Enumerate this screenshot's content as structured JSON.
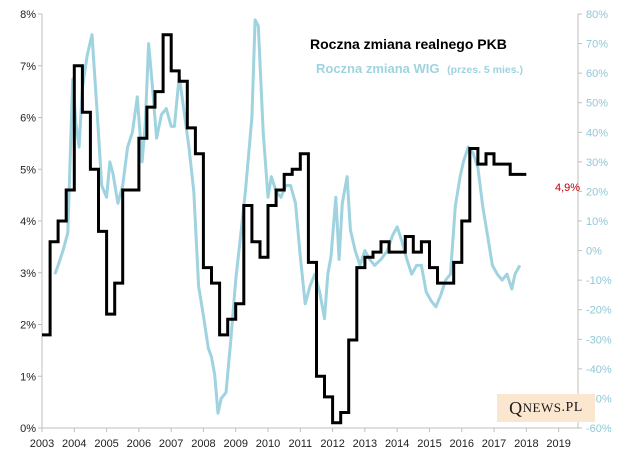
{
  "chart_data": {
    "type": "line",
    "title": "Roczna zmiana realnego PKB",
    "subtitle": "Roczna zmiana WIG",
    "subtitle_note": "(przes. 5 mies.)",
    "x_ticks": [
      "2003",
      "2004",
      "2005",
      "2006",
      "2007",
      "2008",
      "2009",
      "2010",
      "2011",
      "2012",
      "2013",
      "2014",
      "2015",
      "2016",
      "2017",
      "2018",
      "2019"
    ],
    "y_left_ticks": [
      "0%",
      "1%",
      "2%",
      "3%",
      "4%",
      "5%",
      "6%",
      "7%",
      "8%"
    ],
    "y_right_ticks": [
      "-60%",
      "-50%",
      "-40%",
      "-30%",
      "-20%",
      "-10%",
      "0%",
      "10%",
      "20%",
      "30%",
      "40%",
      "50%",
      "60%",
      "70%",
      "80%"
    ],
    "y_left_range": [
      0,
      8
    ],
    "y_right_range": [
      -60,
      80
    ],
    "colors": {
      "gdp": "#000000",
      "wig": "#9fd3df",
      "right_axis": "#8fc8d6",
      "annotation": "#c00000"
    },
    "annotation": "4,9%",
    "series": [
      {
        "name": "Roczna zmiana realnego PKB",
        "axis": "left",
        "step": true,
        "points": [
          [
            2003.0,
            1.8
          ],
          [
            2003.25,
            3.6
          ],
          [
            2003.5,
            4.0
          ],
          [
            2003.75,
            4.6
          ],
          [
            2004.0,
            7.0
          ],
          [
            2004.25,
            6.1
          ],
          [
            2004.5,
            5.0
          ],
          [
            2004.75,
            3.8
          ],
          [
            2005.0,
            2.2
          ],
          [
            2005.25,
            2.8
          ],
          [
            2005.5,
            4.6
          ],
          [
            2005.75,
            4.6
          ],
          [
            2006.0,
            5.6
          ],
          [
            2006.25,
            6.2
          ],
          [
            2006.5,
            6.5
          ],
          [
            2006.75,
            7.6
          ],
          [
            2007.0,
            6.9
          ],
          [
            2007.25,
            6.7
          ],
          [
            2007.5,
            5.8
          ],
          [
            2007.75,
            5.3
          ],
          [
            2008.0,
            3.1
          ],
          [
            2008.25,
            2.8
          ],
          [
            2008.5,
            1.8
          ],
          [
            2008.75,
            2.1
          ],
          [
            2009.0,
            2.4
          ],
          [
            2009.25,
            4.3
          ],
          [
            2009.5,
            3.6
          ],
          [
            2009.75,
            3.3
          ],
          [
            2010.0,
            4.3
          ],
          [
            2010.25,
            4.6
          ],
          [
            2010.5,
            4.9
          ],
          [
            2010.75,
            5.0
          ],
          [
            2011.0,
            5.3
          ],
          [
            2011.25,
            3.2
          ],
          [
            2011.5,
            1.0
          ],
          [
            2011.75,
            0.6
          ],
          [
            2012.0,
            0.1
          ],
          [
            2012.25,
            0.3
          ],
          [
            2012.5,
            1.7
          ],
          [
            2012.75,
            3.1
          ],
          [
            2013.0,
            3.3
          ],
          [
            2013.25,
            3.4
          ],
          [
            2013.5,
            3.6
          ],
          [
            2013.75,
            3.4
          ],
          [
            2014.0,
            3.4
          ],
          [
            2014.25,
            3.7
          ],
          [
            2014.5,
            3.4
          ],
          [
            2014.75,
            3.6
          ],
          [
            2015.0,
            3.1
          ],
          [
            2015.25,
            2.8
          ],
          [
            2015.5,
            2.8
          ],
          [
            2015.75,
            3.2
          ],
          [
            2016.0,
            4.0
          ],
          [
            2016.25,
            5.4
          ],
          [
            2016.5,
            5.1
          ],
          [
            2016.75,
            5.3
          ],
          [
            2017.0,
            5.1
          ],
          [
            2017.25,
            5.1
          ],
          [
            2017.5,
            4.9
          ],
          [
            2017.75,
            4.9
          ]
        ]
      },
      {
        "name": "Roczna zmiana WIG",
        "axis": "right",
        "step": false,
        "points": [
          [
            2003.4,
            -8
          ],
          [
            2003.5,
            -5
          ],
          [
            2003.65,
            0
          ],
          [
            2003.8,
            6
          ],
          [
            2003.95,
            58
          ],
          [
            2004.05,
            43
          ],
          [
            2004.15,
            35
          ],
          [
            2004.25,
            55
          ],
          [
            2004.4,
            66
          ],
          [
            2004.55,
            73
          ],
          [
            2004.7,
            48
          ],
          [
            2004.85,
            22
          ],
          [
            2005.0,
            18
          ],
          [
            2005.1,
            30
          ],
          [
            2005.2,
            26
          ],
          [
            2005.35,
            16
          ],
          [
            2005.5,
            22
          ],
          [
            2005.65,
            35
          ],
          [
            2005.8,
            40
          ],
          [
            2005.95,
            52
          ],
          [
            2006.1,
            30
          ],
          [
            2006.2,
            43
          ],
          [
            2006.3,
            70
          ],
          [
            2006.4,
            58
          ],
          [
            2006.55,
            38
          ],
          [
            2006.7,
            46
          ],
          [
            2006.85,
            48
          ],
          [
            2007.0,
            42
          ],
          [
            2007.1,
            42
          ],
          [
            2007.25,
            59
          ],
          [
            2007.4,
            47
          ],
          [
            2007.55,
            35
          ],
          [
            2007.7,
            20
          ],
          [
            2007.85,
            -12
          ],
          [
            2008.0,
            -22
          ],
          [
            2008.15,
            -33
          ],
          [
            2008.25,
            -36
          ],
          [
            2008.35,
            -42
          ],
          [
            2008.45,
            -55
          ],
          [
            2008.55,
            -50
          ],
          [
            2008.7,
            -48
          ],
          [
            2008.85,
            -30
          ],
          [
            2009.0,
            -10
          ],
          [
            2009.15,
            5
          ],
          [
            2009.3,
            20
          ],
          [
            2009.5,
            45
          ],
          [
            2009.6,
            78
          ],
          [
            2009.7,
            76
          ],
          [
            2009.85,
            40
          ],
          [
            2010.0,
            18
          ],
          [
            2010.1,
            25
          ],
          [
            2010.25,
            20
          ],
          [
            2010.4,
            18
          ],
          [
            2010.55,
            22
          ],
          [
            2010.7,
            22
          ],
          [
            2010.85,
            16
          ],
          [
            2011.0,
            -2
          ],
          [
            2011.15,
            -18
          ],
          [
            2011.3,
            -12
          ],
          [
            2011.45,
            -8
          ],
          [
            2011.6,
            -14
          ],
          [
            2011.75,
            -23
          ],
          [
            2011.85,
            -8
          ],
          [
            2011.95,
            -2
          ],
          [
            2012.1,
            18
          ],
          [
            2012.2,
            -3
          ],
          [
            2012.3,
            16
          ],
          [
            2012.45,
            25
          ],
          [
            2012.55,
            7
          ],
          [
            2012.7,
            0
          ],
          [
            2012.85,
            -5
          ],
          [
            2013.0,
            0
          ],
          [
            2013.15,
            -3
          ],
          [
            2013.3,
            -5
          ],
          [
            2013.5,
            -3
          ],
          [
            2013.7,
            0
          ],
          [
            2013.85,
            5
          ],
          [
            2014.0,
            8
          ],
          [
            2014.15,
            3
          ],
          [
            2014.3,
            -3
          ],
          [
            2014.45,
            -8
          ],
          [
            2014.6,
            -5
          ],
          [
            2014.75,
            -5
          ],
          [
            2014.9,
            -14
          ],
          [
            2015.05,
            -17
          ],
          [
            2015.2,
            -19
          ],
          [
            2015.35,
            -15
          ],
          [
            2015.5,
            -10
          ],
          [
            2015.65,
            -8
          ],
          [
            2015.8,
            15
          ],
          [
            2015.95,
            25
          ],
          [
            2016.05,
            30
          ],
          [
            2016.2,
            35
          ],
          [
            2016.35,
            33
          ],
          [
            2016.5,
            28
          ],
          [
            2016.65,
            15
          ],
          [
            2016.8,
            5
          ],
          [
            2016.95,
            -5
          ],
          [
            2017.1,
            -8
          ],
          [
            2017.25,
            -10
          ],
          [
            2017.4,
            -8
          ],
          [
            2017.55,
            -13
          ],
          [
            2017.65,
            -8
          ],
          [
            2017.8,
            -5
          ]
        ]
      }
    ]
  },
  "logo": {
    "big": "Q",
    "rest": "NEWS",
    "domain": ".PL"
  }
}
